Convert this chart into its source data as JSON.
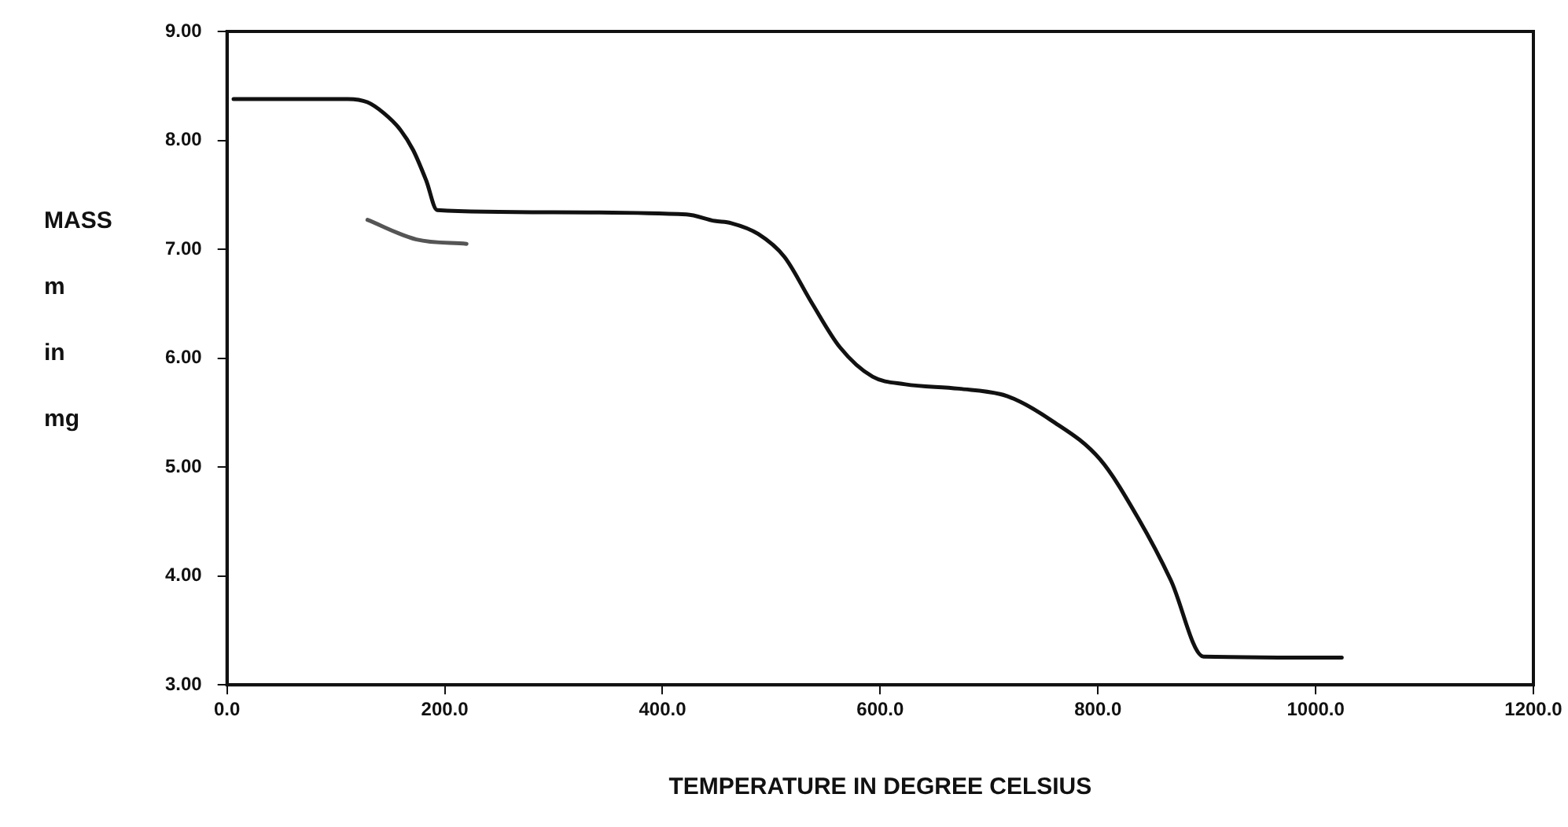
{
  "chart_data": {
    "type": "line",
    "xlabel": "TEMPERATURE IN DEGREE CELSIUS",
    "ylabel": "MASS m in mg",
    "xlim": [
      0,
      1200
    ],
    "ylim": [
      3,
      9
    ],
    "xticks": [
      {
        "value": 0,
        "label": "0.0"
      },
      {
        "value": 200,
        "label": "200.0"
      },
      {
        "value": 400,
        "label": "400.0"
      },
      {
        "value": 600,
        "label": "600.0"
      },
      {
        "value": 800,
        "label": "800.0"
      },
      {
        "value": 1000,
        "label": "1000.0"
      },
      {
        "value": 1200,
        "label": "1200.0"
      }
    ],
    "yticks": [
      {
        "value": 3,
        "label": "3.00"
      },
      {
        "value": 4,
        "label": "4.00"
      },
      {
        "value": 5,
        "label": "5.00"
      },
      {
        "value": 6,
        "label": "6.00"
      },
      {
        "value": 7,
        "label": "7.00"
      },
      {
        "value": 8,
        "label": "8.00"
      },
      {
        "value": 9,
        "label": "9.00"
      }
    ],
    "grid": false,
    "legend": false,
    "marker": "none",
    "line_style": "solid",
    "series": [
      {
        "color": "#111111",
        "x": [
          6,
          111,
          129,
          144,
          159,
          171,
          183,
          193,
          298,
          422,
          448,
          463,
          488,
          512,
          537,
          563,
          593,
          623,
          672,
          717,
          757,
          802,
          837,
          867,
          897,
          1024
        ],
        "values": [
          8.38,
          8.38,
          8.35,
          8.25,
          8.1,
          7.91,
          7.63,
          7.36,
          7.34,
          7.32,
          7.26,
          7.24,
          7.14,
          6.93,
          6.51,
          6.1,
          5.83,
          5.76,
          5.72,
          5.65,
          5.43,
          5.07,
          4.53,
          3.96,
          3.26,
          3.25
        ]
      },
      {
        "color": "#555555",
        "x": [
          129,
          174,
          220
        ],
        "values": [
          7.27,
          7.09,
          7.05
        ]
      }
    ]
  }
}
